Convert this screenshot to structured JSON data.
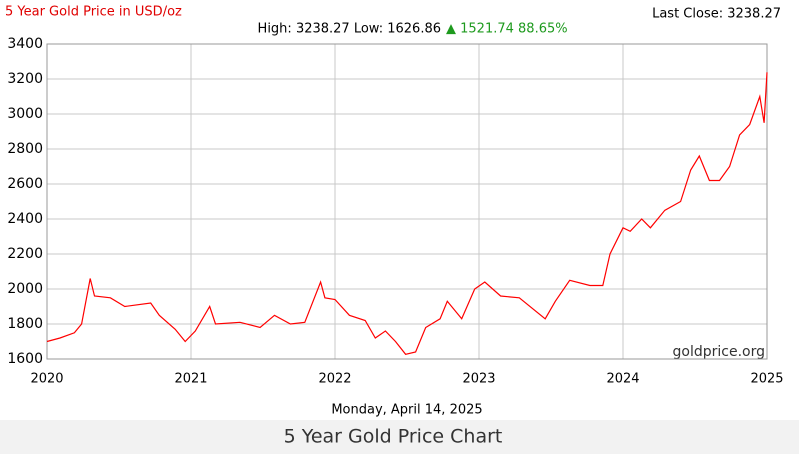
{
  "chart_data": {
    "type": "line",
    "title": "5 Year Gold Price in USD/oz",
    "last_close": "Last Close: 3238.27",
    "high_low": "High: 3238.27 Low: 1626.86",
    "change": "▲ 1521.74 88.65%",
    "watermark": "goldprice.org",
    "date": "Monday, April 14, 2025",
    "caption": "5 Year Gold Price Chart",
    "color": "#ff0000",
    "grid": true,
    "x": [
      2020.0,
      2020.09,
      2020.19,
      2020.24,
      2020.3,
      2020.33,
      2020.44,
      2020.54,
      2020.72,
      2020.78,
      2020.89,
      2020.96,
      2021.03,
      2021.13,
      2021.17,
      2021.34,
      2021.48,
      2021.58,
      2021.69,
      2021.79,
      2021.9,
      2021.93,
      2022.0,
      2022.1,
      2022.21,
      2022.28,
      2022.35,
      2022.42,
      2022.49,
      2022.56,
      2022.63,
      2022.73,
      2022.78,
      2022.88,
      2022.97,
      2023.04,
      2023.15,
      2023.28,
      2023.46,
      2023.53,
      2023.63,
      2023.77,
      2023.86,
      2023.91,
      2024.0,
      2024.05,
      2024.13,
      2024.19,
      2024.29,
      2024.4,
      2024.47,
      2024.53,
      2024.6,
      2024.67,
      2024.74,
      2024.81,
      2024.88,
      2024.95,
      2024.98,
      2025.0
    ],
    "values": [
      1700,
      1720,
      1750,
      1800,
      2060,
      1960,
      1950,
      1900,
      1920,
      1850,
      1770,
      1700,
      1760,
      1900,
      1800,
      1810,
      1780,
      1850,
      1800,
      1810,
      2040,
      1950,
      1940,
      1850,
      1820,
      1720,
      1760,
      1700,
      1626.86,
      1640,
      1780,
      1830,
      1930,
      1830,
      2000,
      2040,
      1960,
      1950,
      1830,
      1930,
      2050,
      2020,
      2020,
      2200,
      2350,
      2330,
      2400,
      2350,
      2450,
      2500,
      2680,
      2760,
      2620,
      2620,
      2700,
      2880,
      2940,
      3100,
      2950,
      3238.27
    ],
    "xlim": [
      2020,
      2025
    ],
    "xticks": [
      2020,
      2021,
      2022,
      2023,
      2024,
      2025
    ],
    "ylim": [
      1600,
      3400
    ],
    "yticks": [
      1600,
      1800,
      2000,
      2200,
      2400,
      2600,
      2800,
      3000,
      3200,
      3400
    ]
  }
}
